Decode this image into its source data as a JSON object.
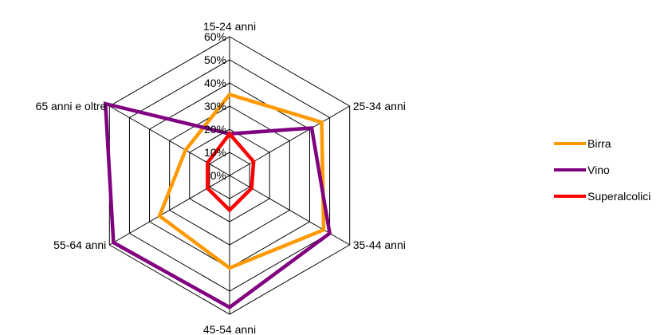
{
  "chart_data": {
    "type": "radar",
    "categories": [
      "15-24 anni",
      "25-34 anni",
      "35-44 anni",
      "45-54 anni",
      "55-64 anni",
      "65 anni e oltre"
    ],
    "ticks": [
      "0%",
      "10%",
      "20%",
      "30%",
      "40%",
      "50%",
      "60%"
    ],
    "range": [
      0,
      60
    ],
    "series": [
      {
        "name": "Birra",
        "color": "#FF9900",
        "values": [
          35,
          46,
          47,
          40,
          35,
          22
        ]
      },
      {
        "name": "Vino",
        "color": "#800080",
        "values": [
          18,
          41,
          50,
          57,
          58,
          62
        ]
      },
      {
        "name": "Superalcolici",
        "color": "#FF0000",
        "values": [
          18,
          12,
          11,
          15,
          11,
          11
        ]
      }
    ],
    "legend_position": "right",
    "grid": true
  }
}
